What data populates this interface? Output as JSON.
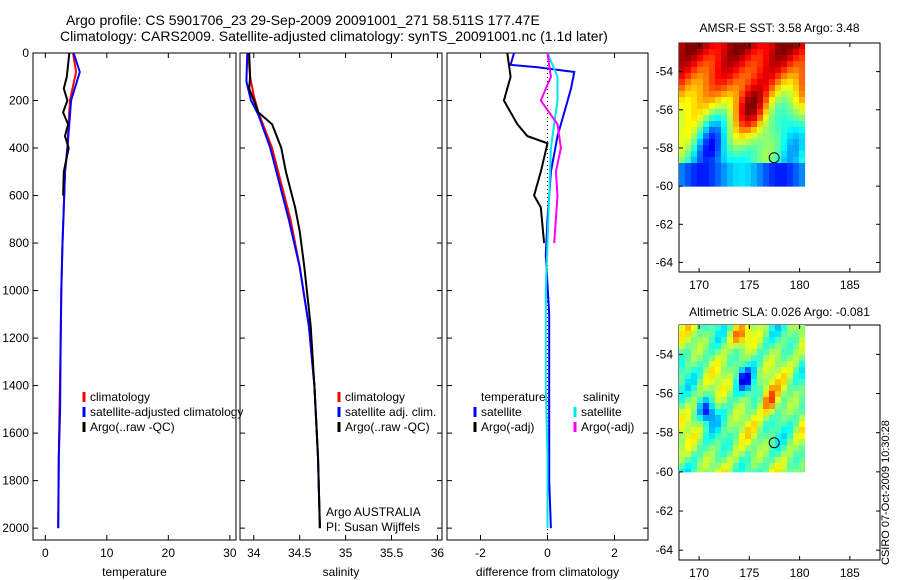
{
  "header": {
    "line1": "Argo profile: CS 5901706_23 29-Sep-2009 20091001_271 58.511S 177.47E",
    "line2": "Climatology: CARS2009. Satellite-adjusted climatology: synTS_20091001.nc (1.1d later)"
  },
  "credit": "CSIRO 07-Oct-2009 10:30:28",
  "colors": {
    "climatology": "#ff0000",
    "satellite": "#0000ff",
    "argo": "#000000",
    "satellite_salinity_diff": "#00e5ee",
    "argo_salinity_diff": "#ff00ff"
  },
  "chart_data": [
    {
      "type": "line",
      "xlabel": "temperature",
      "ylabel": "",
      "xlim": [
        -2,
        31
      ],
      "ylim": [
        2050,
        0
      ],
      "y_reversed": true,
      "xticks": [
        0,
        10,
        20,
        30
      ],
      "yticks": [
        0,
        200,
        400,
        600,
        800,
        1000,
        1200,
        1400,
        1600,
        1800,
        2000
      ],
      "legend": {
        "placement": "lower-right",
        "entries": [
          "climatology",
          "satellite-adjusted climatology",
          "Argo(..raw -QC)"
        ]
      },
      "series": [
        {
          "name": "climatology",
          "color": "#ff0000",
          "points": [
            [
              4.5,
              0
            ],
            [
              5.0,
              80
            ],
            [
              4.0,
              200
            ],
            [
              3.6,
              400
            ],
            [
              3.2,
              500
            ],
            [
              3.0,
              650
            ],
            [
              2.8,
              800
            ],
            [
              2.6,
              1000
            ],
            [
              2.5,
              1200
            ],
            [
              2.3,
              1500
            ],
            [
              2.2,
              1700
            ],
            [
              2.1,
              2000
            ]
          ]
        },
        {
          "name": "satellite-adjusted climatology",
          "color": "#0000ff",
          "points": [
            [
              4.6,
              0
            ],
            [
              5.6,
              80
            ],
            [
              4.2,
              200
            ],
            [
              3.6,
              400
            ],
            [
              3.2,
              500
            ],
            [
              3.0,
              650
            ],
            [
              2.8,
              800
            ],
            [
              2.6,
              1000
            ],
            [
              2.5,
              1200
            ],
            [
              2.4,
              1500
            ],
            [
              2.2,
              1700
            ],
            [
              2.1,
              2000
            ]
          ]
        },
        {
          "name": "Argo(..raw -QC)",
          "color": "#000000",
          "points": [
            [
              3.9,
              0
            ],
            [
              3.5,
              100
            ],
            [
              3.0,
              150
            ],
            [
              3.6,
              200
            ],
            [
              2.9,
              250
            ],
            [
              3.7,
              300
            ],
            [
              3.2,
              350
            ],
            [
              3.8,
              400
            ],
            [
              3.0,
              500
            ],
            [
              2.9,
              600
            ]
          ]
        }
      ]
    },
    {
      "type": "line",
      "xlabel": "salinity",
      "ylabel": "",
      "xlim": [
        33.85,
        36.05
      ],
      "ylim": [
        2050,
        0
      ],
      "y_reversed": true,
      "xticks": [
        34,
        34.5,
        35,
        35.5,
        36
      ],
      "legend": {
        "placement": "lower-right",
        "entries": [
          "climatology",
          "satellite adj. clim.",
          "Argo(..raw -QC)"
        ]
      },
      "annotations": [
        "Argo AUSTRALIA",
        "PI: Susan Wijffels"
      ],
      "series": [
        {
          "name": "climatology",
          "color": "#ff0000",
          "points": [
            [
              33.94,
              0
            ],
            [
              33.96,
              100
            ],
            [
              34.0,
              180
            ],
            [
              34.05,
              250
            ],
            [
              34.2,
              400
            ],
            [
              34.3,
              550
            ],
            [
              34.4,
              700
            ],
            [
              34.5,
              900
            ],
            [
              34.6,
              1150
            ],
            [
              34.66,
              1400
            ],
            [
              34.7,
              1700
            ],
            [
              34.72,
              2000
            ]
          ]
        },
        {
          "name": "satellite adj. clim.",
          "color": "#0000ff",
          "points": [
            [
              33.93,
              0
            ],
            [
              33.92,
              120
            ],
            [
              33.97,
              200
            ],
            [
              34.05,
              260
            ],
            [
              34.18,
              400
            ],
            [
              34.28,
              550
            ],
            [
              34.38,
              700
            ],
            [
              34.5,
              900
            ],
            [
              34.6,
              1150
            ],
            [
              34.66,
              1400
            ],
            [
              34.7,
              1700
            ],
            [
              34.72,
              2000
            ]
          ]
        },
        {
          "name": "Argo(..raw -QC)",
          "color": "#000000",
          "points": [
            [
              33.95,
              0
            ],
            [
              33.96,
              100
            ],
            [
              33.95,
              150
            ],
            [
              34.0,
              200
            ],
            [
              34.05,
              250
            ],
            [
              34.2,
              300
            ],
            [
              34.3,
              400
            ],
            [
              34.35,
              500
            ],
            [
              34.45,
              650
            ],
            [
              34.5,
              750
            ],
            [
              34.55,
              900
            ],
            [
              34.62,
              1150
            ],
            [
              34.66,
              1400
            ],
            [
              34.7,
              1700
            ],
            [
              34.72,
              2000
            ]
          ]
        }
      ]
    },
    {
      "type": "line",
      "xlabel": "difference from climatology",
      "ylabel": "",
      "xlim": [
        -3,
        3
      ],
      "ylim": [
        2050,
        0
      ],
      "y_reversed": true,
      "xticks": [
        -2,
        0,
        2
      ],
      "legend": {
        "placement": "lower-center",
        "groups": [
          {
            "title": "temperature",
            "entries": [
              "satellite",
              "Argo(-adj)"
            ]
          },
          {
            "title": "salinity",
            "entries": [
              "satellite",
              "Argo(-adj)"
            ]
          }
        ]
      },
      "series": [
        {
          "name": "satellite",
          "group": "temperature",
          "color": "#0000ff",
          "points": [
            [
              -1.0,
              0
            ],
            [
              -1.1,
              50
            ],
            [
              -0.3,
              60
            ],
            [
              0.8,
              80
            ],
            [
              0.7,
              150
            ],
            [
              0.5,
              250
            ],
            [
              0.3,
              350
            ],
            [
              0.1,
              500
            ],
            [
              0.0,
              700
            ],
            [
              -0.05,
              850
            ],
            [
              0.05,
              1100
            ],
            [
              0.05,
              1500
            ],
            [
              0.05,
              1800
            ],
            [
              0.1,
              2000
            ]
          ]
        },
        {
          "name": "Argo(-adj)",
          "group": "temperature",
          "color": "#000000",
          "points": [
            [
              -1.2,
              0
            ],
            [
              -1.1,
              100
            ],
            [
              -1.3,
              200
            ],
            [
              -0.9,
              300
            ],
            [
              -0.6,
              350
            ],
            [
              0.0,
              380
            ],
            [
              -0.2,
              500
            ],
            [
              -0.4,
              600
            ],
            [
              -0.2,
              650
            ],
            [
              -0.1,
              800
            ]
          ]
        },
        {
          "name": "satellite",
          "group": "salinity",
          "color": "#00e5ee",
          "points": [
            [
              0.0,
              0
            ],
            [
              0.15,
              50
            ],
            [
              0.3,
              100
            ],
            [
              0.3,
              200
            ],
            [
              0.2,
              300
            ],
            [
              0.1,
              400
            ],
            [
              0.05,
              600
            ],
            [
              0.0,
              800
            ],
            [
              -0.05,
              1000
            ],
            [
              -0.05,
              1400
            ],
            [
              0.0,
              1700
            ],
            [
              0.0,
              2000
            ]
          ]
        },
        {
          "name": "Argo(-adj)",
          "group": "salinity",
          "color": "#ff00ff",
          "points": [
            [
              0.0,
              0
            ],
            [
              0.1,
              100
            ],
            [
              -0.2,
              200
            ],
            [
              0.3,
              300
            ],
            [
              0.4,
              400
            ],
            [
              0.25,
              500
            ],
            [
              0.3,
              600
            ],
            [
              0.2,
              800
            ]
          ]
        }
      ]
    },
    {
      "type": "heatmap",
      "title": "AMSR-E SST: 3.58 Argo: 3.48",
      "xlim": [
        168,
        188
      ],
      "ylim": [
        -64.5,
        -52.5
      ],
      "xticks": [
        170,
        175,
        180,
        185
      ],
      "yticks": [
        -54,
        -56,
        -58,
        -60,
        -62,
        -64
      ],
      "data_extent": {
        "lon": [
          168,
          180.5
        ],
        "lat": [
          -60,
          -52.5
        ]
      },
      "marker": {
        "lon": 177.47,
        "lat": -58.511
      },
      "colormap": "jet",
      "grid_lonlat": {
        "lon": [
          168.5,
          170,
          171.5,
          173,
          174.5,
          176,
          177.5,
          179,
          180.5
        ],
        "lat": [
          -53,
          -54,
          -55,
          -56,
          -57,
          -58,
          -59,
          -60
        ]
      }
    },
    {
      "type": "heatmap",
      "title": "Altimetric SLA: 0.026 Argo: -0.081",
      "xlim": [
        168,
        188
      ],
      "ylim": [
        -64.5,
        -52.5
      ],
      "xticks": [
        170,
        175,
        180,
        185
      ],
      "yticks": [
        -54,
        -56,
        -58,
        -60,
        -62,
        -64
      ],
      "data_extent": {
        "lon": [
          168,
          180.5
        ],
        "lat": [
          -60,
          -52.5
        ]
      },
      "marker": {
        "lon": 177.47,
        "lat": -58.511
      },
      "colormap": "jet"
    }
  ]
}
